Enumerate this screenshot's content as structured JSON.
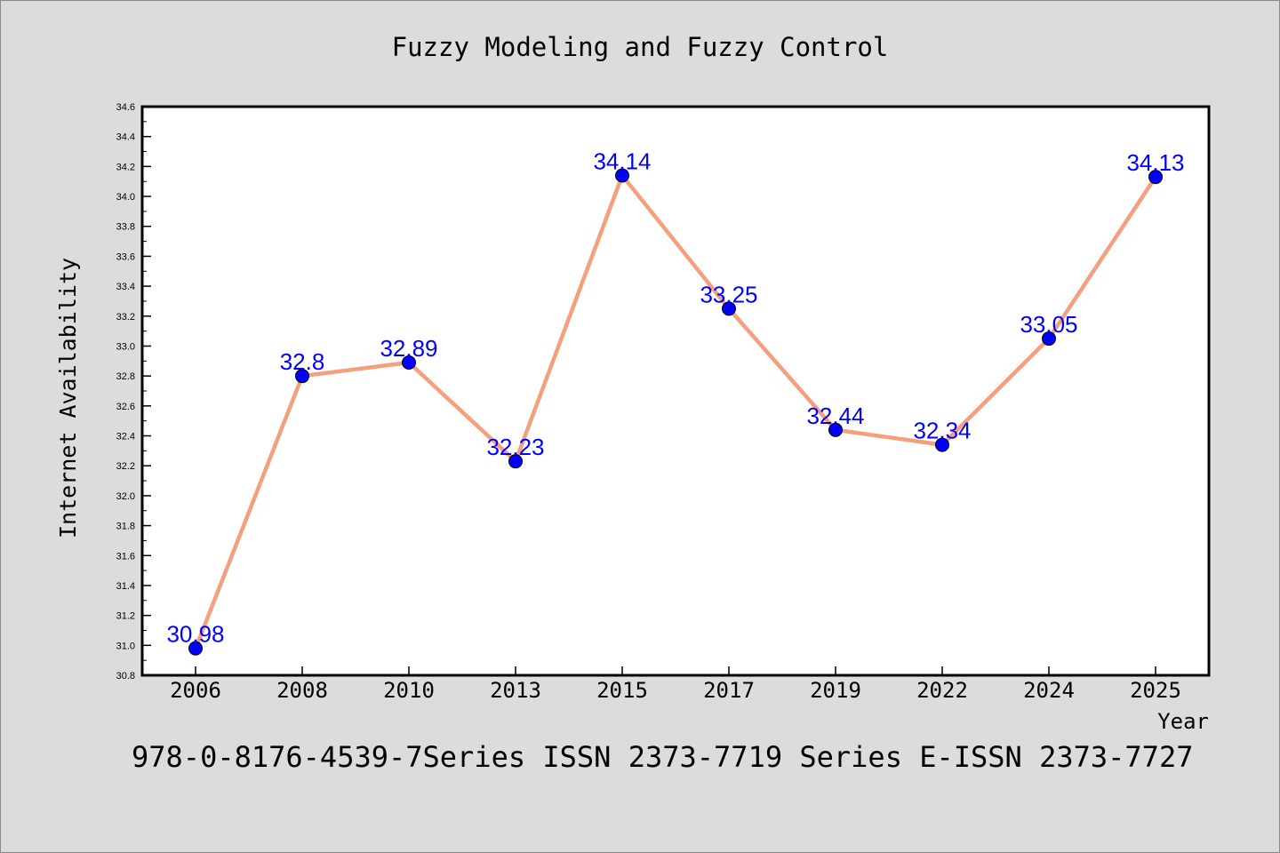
{
  "chart_data": {
    "type": "line",
    "title": "Fuzzy Modeling and Fuzzy Control",
    "xlabel": "Year",
    "ylabel": "Internet Availability",
    "categories": [
      "2006",
      "2008",
      "2010",
      "2013",
      "2015",
      "2017",
      "2019",
      "2022",
      "2024",
      "2025"
    ],
    "values": [
      30.98,
      32.8,
      32.89,
      32.23,
      34.14,
      33.25,
      32.44,
      32.34,
      33.05,
      34.13
    ],
    "data_labels": [
      "30.98",
      "32.8",
      "32.89",
      "32.23",
      "34.14",
      "33.25",
      "32.44",
      "32.34",
      "33.05",
      "34.13"
    ],
    "ylim": [
      30.8,
      34.6
    ],
    "y_ticks": [
      "30.8",
      "31.0",
      "31.2",
      "31.4",
      "31.6",
      "31.8",
      "32.0",
      "32.2",
      "32.4",
      "32.6",
      "32.8",
      "33.0",
      "33.2",
      "33.4",
      "33.6",
      "33.8",
      "34.0",
      "34.2",
      "34.4",
      "34.6"
    ],
    "grid": false,
    "legend": "none",
    "colors": {
      "line": "#f4a07f",
      "marker": "#0000ff",
      "data_label": "#0000ff",
      "axis": "#000000",
      "plot_background": "#ffffff",
      "page_background": "#dcdcdc"
    }
  },
  "footer": "978-0-8176-4539-7Series ISSN 2373-7719 Series E-ISSN 2373-7727"
}
